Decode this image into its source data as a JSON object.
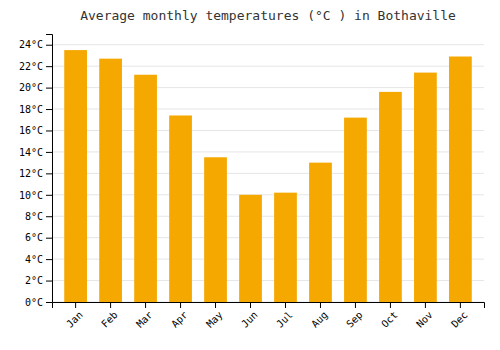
{
  "chart_data": {
    "type": "bar",
    "title": "Average monthly temperatures (°C ) in Bothaville",
    "categories": [
      "Jan",
      "Feb",
      "Mar",
      "Apr",
      "May",
      "Jun",
      "Jul",
      "Aug",
      "Sep",
      "Oct",
      "Nov",
      "Dec"
    ],
    "values": [
      23.5,
      22.7,
      21.2,
      17.4,
      13.5,
      10.0,
      10.2,
      13.0,
      17.2,
      19.6,
      21.4,
      22.9
    ],
    "color": "#F5A800",
    "ylim": [
      0,
      25
    ],
    "yticks": [
      {
        "value": 0,
        "label": "0°C"
      },
      {
        "value": 2,
        "label": "2°C"
      },
      {
        "value": 4,
        "label": "4°C"
      },
      {
        "value": 6,
        "label": "6°C"
      },
      {
        "value": 8,
        "label": "8°C"
      },
      {
        "value": 10,
        "label": "10°C"
      },
      {
        "value": 12,
        "label": "12°C"
      },
      {
        "value": 14,
        "label": "14°C"
      },
      {
        "value": 16,
        "label": "16°C"
      },
      {
        "value": 18,
        "label": "18°C"
      },
      {
        "value": 20,
        "label": "20°C"
      },
      {
        "value": 22,
        "label": "22°C"
      },
      {
        "value": 24,
        "label": "24°C"
      }
    ],
    "grid": true
  }
}
